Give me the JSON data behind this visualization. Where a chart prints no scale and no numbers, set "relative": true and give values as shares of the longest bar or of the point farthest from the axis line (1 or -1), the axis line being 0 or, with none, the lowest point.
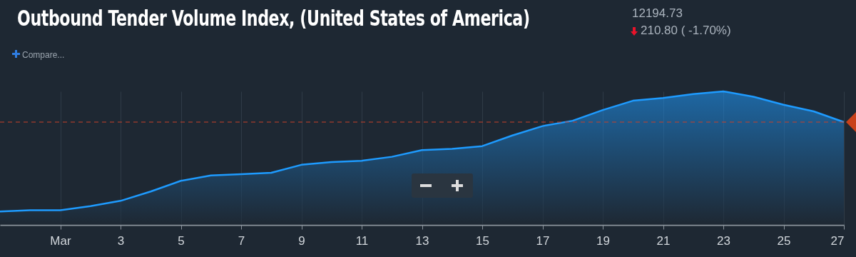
{
  "chart_data": {
    "type": "area",
    "title": "Outbound Tender Volume Index, (United States of America)",
    "annotations": [
      "12194.73",
      "210.80 ( -1.70%)",
      "Compare..."
    ],
    "relative": true,
    "x": [
      "--02-27",
      "--02-28",
      "--03-01",
      "--03-02",
      "--03-03",
      "--03-04",
      "--03-05",
      "--03-06",
      "--03-07",
      "--03-08",
      "--03-09",
      "--03-10",
      "--03-11",
      "--03-12",
      "--03-13",
      "--03-14",
      "--03-15",
      "--03-16",
      "--03-17",
      "--03-18",
      "--03-19",
      "--03-20",
      "--03-21",
      "--03-22",
      "--03-23",
      "--03-24",
      "--03-25",
      "--03-26",
      "--03-27"
    ],
    "xlim": [
      "--02-27",
      "--03-27"
    ],
    "xticks": [
      {
        "value": "--03-01",
        "label": "Mar"
      },
      {
        "value": "--03-03",
        "label": "3"
      },
      {
        "value": "--03-05",
        "label": "5"
      },
      {
        "value": "--03-07",
        "label": "7"
      },
      {
        "value": "--03-09",
        "label": "9"
      },
      {
        "value": "--03-11",
        "label": "11"
      },
      {
        "value": "--03-13",
        "label": "13"
      },
      {
        "value": "--03-15",
        "label": "15"
      },
      {
        "value": "--03-17",
        "label": "17"
      },
      {
        "value": "--03-19",
        "label": "19"
      },
      {
        "value": "--03-21",
        "label": "21"
      },
      {
        "value": "--03-23",
        "label": "23"
      },
      {
        "value": "--03-25",
        "label": "25"
      },
      {
        "value": "--03-27",
        "label": "27"
      }
    ],
    "series": [
      {
        "color": "#1e9bff",
        "values": [
          0.1,
          0.11,
          0.11,
          0.14,
          0.18,
          0.25,
          0.33,
          0.37,
          0.38,
          0.39,
          0.45,
          0.47,
          0.48,
          0.51,
          0.56,
          0.57,
          0.59,
          0.67,
          0.74,
          0.78,
          0.86,
          0.93,
          0.95,
          0.98,
          1,
          0.96,
          0.9,
          0.85,
          0.77
        ]
      }
    ],
    "ref_lines": [
      {
        "axis": "y",
        "value": 0.77,
        "color": "#c8412a",
        "line_style": "dashed"
      }
    ],
    "grid": "x"
  }
}
